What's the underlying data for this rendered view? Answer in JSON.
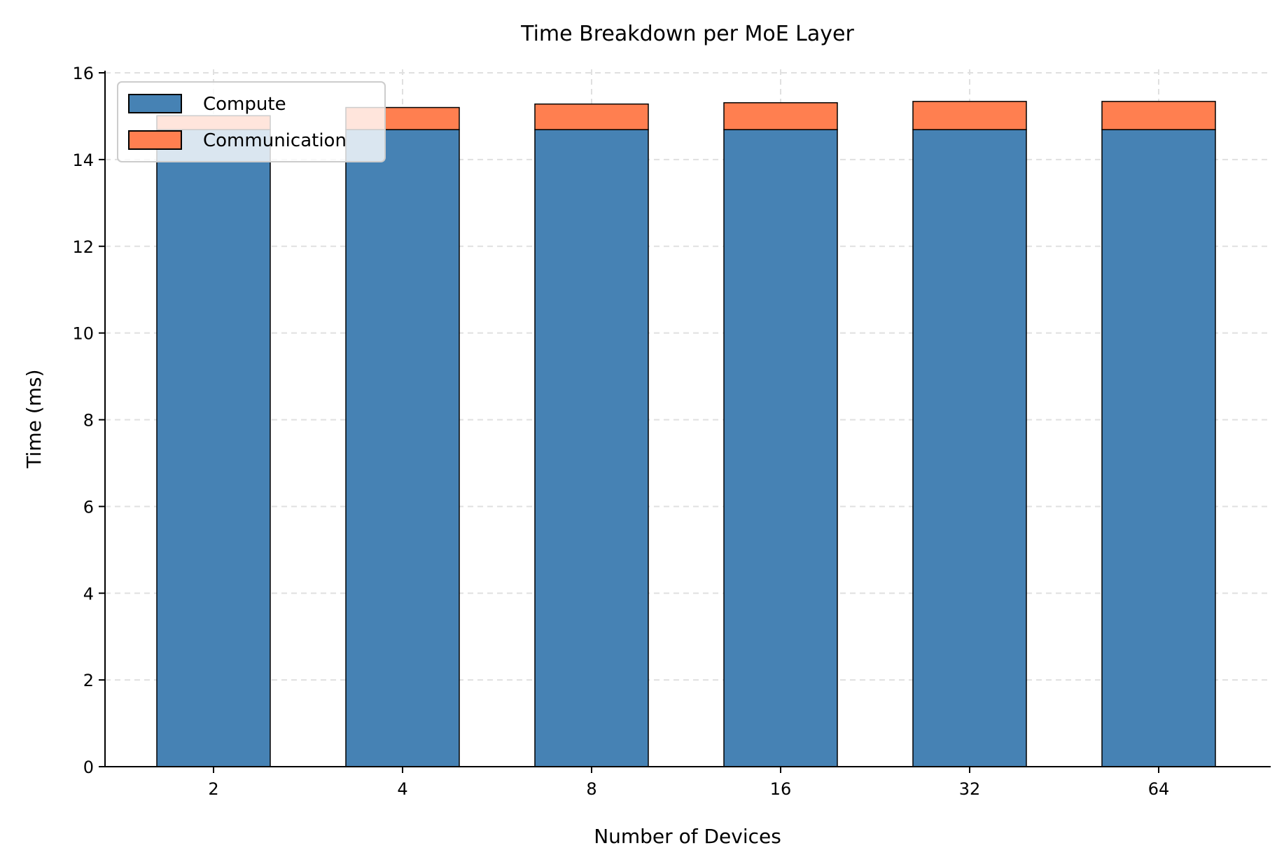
{
  "chart_data": {
    "type": "bar",
    "stacked": true,
    "title": "Time Breakdown per MoE Layer",
    "xlabel": "Number of Devices",
    "ylabel": "Time (ms)",
    "categories": [
      "2",
      "4",
      "8",
      "16",
      "32",
      "64"
    ],
    "series": [
      {
        "name": "Compute",
        "color": "#4682b4",
        "values": [
          14.69,
          14.69,
          14.69,
          14.69,
          14.69,
          14.69
        ]
      },
      {
        "name": "Communication",
        "color": "#ff7f50",
        "values": [
          0.32,
          0.51,
          0.59,
          0.62,
          0.65,
          0.65
        ]
      }
    ],
    "ylim": [
      0,
      16
    ],
    "yticks": [
      "0",
      "2",
      "4",
      "6",
      "8",
      "10",
      "12",
      "14",
      "16"
    ],
    "grid": true,
    "legend_position": "upper left"
  }
}
